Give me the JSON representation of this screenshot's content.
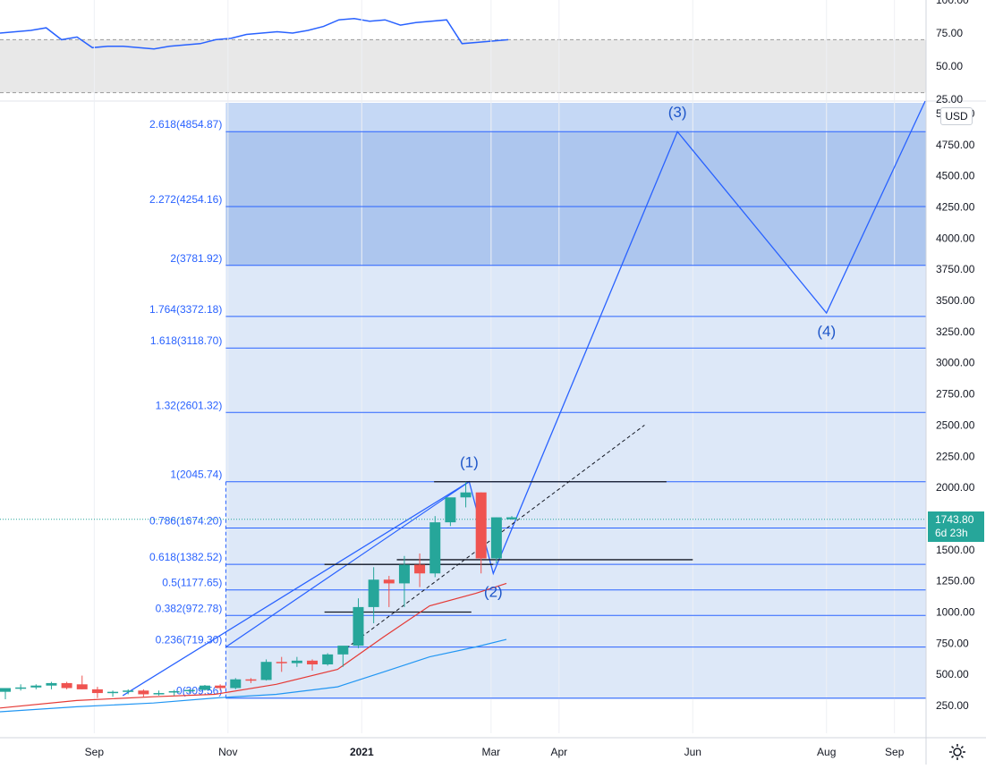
{
  "chart_data": [
    {
      "type": "line",
      "title": "",
      "y_ticks": [
        "100.00",
        "75.00",
        "50.00",
        "25.00"
      ],
      "ylim": [
        25,
        100
      ],
      "band": [
        30,
        70
      ],
      "values": [
        75,
        76,
        77,
        79,
        70,
        72,
        64,
        65,
        65,
        64,
        63,
        65,
        66,
        67,
        70,
        71,
        74,
        75,
        76,
        75,
        77,
        80,
        85,
        86,
        84,
        85,
        81,
        83,
        84,
        85,
        67,
        68,
        69,
        70
      ]
    },
    {
      "type": "candlestick",
      "title": "",
      "currency_button": "USD",
      "y_ticks": [
        "5000.00",
        "4750.00",
        "4500.00",
        "4250.00",
        "4000.00",
        "3750.00",
        "3500.00",
        "3250.00",
        "3000.00",
        "2750.00",
        "2500.00",
        "2250.00",
        "2000.00",
        "1750.00",
        "1500.00",
        "1250.00",
        "1000.00",
        "750.00",
        "500.00",
        "250.00"
      ],
      "x_ticks": [
        {
          "label": "Sep",
          "date": "2020-09-01",
          "bold": false
        },
        {
          "label": "Nov",
          "date": "2020-11-01",
          "bold": false
        },
        {
          "label": "2021",
          "date": "2021-01-01",
          "bold": true
        },
        {
          "label": "Mar",
          "date": "2021-03-01",
          "bold": false
        },
        {
          "label": "Apr",
          "date": "2021-04-01",
          "bold": false
        },
        {
          "label": "Jun",
          "date": "2021-06-01",
          "bold": false
        },
        {
          "label": "Aug",
          "date": "2021-08-01",
          "bold": false
        },
        {
          "label": "Sep",
          "date": "2021-09-01",
          "bold": false
        }
      ],
      "xlim": [
        "2020-07-20",
        "2021-09-15"
      ],
      "ylim": [
        100,
        5100
      ],
      "current_price": {
        "value": "1743.80",
        "countdown": "6d 23h"
      },
      "fib_levels": [
        {
          "ratio": "0",
          "price": "309.56"
        },
        {
          "ratio": "0.236",
          "price": "719.30"
        },
        {
          "ratio": "0.382",
          "price": "972.78"
        },
        {
          "ratio": "0.5",
          "price": "1177.65"
        },
        {
          "ratio": "0.618",
          "price": "1382.52"
        },
        {
          "ratio": "0.786",
          "price": "1674.20"
        },
        {
          "ratio": "1",
          "price": "2045.74"
        },
        {
          "ratio": "1.32",
          "price": "2601.32"
        },
        {
          "ratio": "1.618",
          "price": "3118.70"
        },
        {
          "ratio": "1.764",
          "price": "3372.18"
        },
        {
          "ratio": "2",
          "price": "3781.92"
        },
        {
          "ratio": "2.272",
          "price": "4254.16"
        },
        {
          "ratio": "2.618",
          "price": "4854.87"
        }
      ],
      "target_zone": [
        3781.92,
        4854.87
      ],
      "fib_start_date": "2020-10-31",
      "candles": [
        {
          "d": "2020-07-20",
          "o": 360,
          "h": 390,
          "l": 300,
          "c": 390
        },
        {
          "d": "2020-07-27",
          "o": 390,
          "h": 420,
          "l": 370,
          "c": 395
        },
        {
          "d": "2020-08-03",
          "o": 395,
          "h": 420,
          "l": 380,
          "c": 410
        },
        {
          "d": "2020-08-10",
          "o": 410,
          "h": 440,
          "l": 380,
          "c": 430
        },
        {
          "d": "2020-08-17",
          "o": 430,
          "h": 440,
          "l": 380,
          "c": 390
        },
        {
          "d": "2020-08-24",
          "o": 420,
          "h": 490,
          "l": 380,
          "c": 380
        },
        {
          "d": "2020-08-31",
          "o": 380,
          "h": 400,
          "l": 310,
          "c": 350
        },
        {
          "d": "2020-09-07",
          "o": 350,
          "h": 370,
          "l": 320,
          "c": 360
        },
        {
          "d": "2020-09-14",
          "o": 360,
          "h": 380,
          "l": 340,
          "c": 370
        },
        {
          "d": "2020-09-21",
          "o": 370,
          "h": 380,
          "l": 320,
          "c": 340
        },
        {
          "d": "2020-09-28",
          "o": 340,
          "h": 370,
          "l": 330,
          "c": 350
        },
        {
          "d": "2020-10-05",
          "o": 355,
          "h": 375,
          "l": 330,
          "c": 365
        },
        {
          "d": "2020-10-12",
          "o": 365,
          "h": 380,
          "l": 350,
          "c": 375
        },
        {
          "d": "2020-10-19",
          "o": 375,
          "h": 415,
          "l": 370,
          "c": 410
        },
        {
          "d": "2020-10-26",
          "o": 410,
          "h": 420,
          "l": 370,
          "c": 390
        },
        {
          "d": "2020-11-02",
          "o": 390,
          "h": 470,
          "l": 380,
          "c": 460
        },
        {
          "d": "2020-11-09",
          "o": 460,
          "h": 470,
          "l": 430,
          "c": 455
        },
        {
          "d": "2020-11-16",
          "o": 455,
          "h": 620,
          "l": 450,
          "c": 600
        },
        {
          "d": "2020-11-23",
          "o": 600,
          "h": 640,
          "l": 520,
          "c": 590
        },
        {
          "d": "2020-11-30",
          "o": 590,
          "h": 640,
          "l": 560,
          "c": 610
        },
        {
          "d": "2020-12-07",
          "o": 610,
          "h": 620,
          "l": 530,
          "c": 580
        },
        {
          "d": "2020-12-14",
          "o": 580,
          "h": 670,
          "l": 570,
          "c": 660
        },
        {
          "d": "2020-12-21",
          "o": 660,
          "h": 700,
          "l": 560,
          "c": 730
        },
        {
          "d": "2020-12-28",
          "o": 730,
          "h": 1110,
          "l": 710,
          "c": 1040
        },
        {
          "d": "2021-01-04",
          "o": 1040,
          "h": 1360,
          "l": 910,
          "c": 1260
        },
        {
          "d": "2021-01-11",
          "o": 1260,
          "h": 1290,
          "l": 1040,
          "c": 1230
        },
        {
          "d": "2021-01-18",
          "o": 1230,
          "h": 1450,
          "l": 1040,
          "c": 1380
        },
        {
          "d": "2021-01-25",
          "o": 1380,
          "h": 1470,
          "l": 1200,
          "c": 1310
        },
        {
          "d": "2021-02-01",
          "o": 1310,
          "h": 1770,
          "l": 1280,
          "c": 1720
        },
        {
          "d": "2021-02-08",
          "o": 1720,
          "h": 1880,
          "l": 1690,
          "c": 1920
        },
        {
          "d": "2021-02-15",
          "o": 1920,
          "h": 2045,
          "l": 1840,
          "c": 1960
        },
        {
          "d": "2021-02-22",
          "o": 1960,
          "h": 1960,
          "l": 1310,
          "c": 1430
        },
        {
          "d": "2021-03-01",
          "o": 1430,
          "h": 1760,
          "l": 1390,
          "c": 1760
        },
        {
          "d": "2021-03-08",
          "o": 1744,
          "h": 1770,
          "l": 1740,
          "c": 1760
        }
      ],
      "ema_short": [
        [
          "2020-07-20",
          230
        ],
        [
          "2020-08-24",
          290
        ],
        [
          "2020-09-28",
          320
        ],
        [
          "2020-10-26",
          340
        ],
        [
          "2020-11-23",
          420
        ],
        [
          "2020-12-21",
          540
        ],
        [
          "2021-01-11",
          800
        ],
        [
          "2021-02-01",
          1050
        ],
        [
          "2021-02-22",
          1150
        ],
        [
          "2021-03-08",
          1230
        ]
      ],
      "ema_long": [
        [
          "2020-07-20",
          200
        ],
        [
          "2020-08-24",
          240
        ],
        [
          "2020-09-28",
          270
        ],
        [
          "2020-10-26",
          310
        ],
        [
          "2020-11-23",
          340
        ],
        [
          "2020-12-21",
          400
        ],
        [
          "2021-01-11",
          520
        ],
        [
          "2021-02-01",
          640
        ],
        [
          "2021-02-22",
          720
        ],
        [
          "2021-03-08",
          780
        ]
      ],
      "wave_labels": [
        {
          "label": "(1)",
          "date": "2021-02-19",
          "value": 2045.74
        },
        {
          "label": "(2)",
          "date": "2021-03-02",
          "value": 1310
        },
        {
          "label": "(3)",
          "date": "2021-05-25",
          "value": 4854.87
        },
        {
          "label": "(4)",
          "date": "2021-08-01",
          "value": 3400
        }
      ],
      "wave_path": [
        [
          "2020-09-14",
          330
        ],
        [
          "2021-02-19",
          2045.74
        ],
        [
          "2021-03-02",
          1310
        ],
        [
          "2021-05-25",
          4854.87
        ],
        [
          "2021-08-01",
          3400
        ],
        [
          "2021-09-15",
          5100
        ]
      ],
      "channel_top": [
        [
          "2020-10-31",
          719.3
        ],
        [
          "2021-02-19",
          2045.74
        ]
      ],
      "trend_line": [
        [
          "2020-12-25",
          710
        ],
        [
          "2021-05-10",
          2500
        ]
      ],
      "horizontal_marks": [
        {
          "from": "2021-02-03",
          "to": "2021-05-20",
          "value": 2045.74
        },
        {
          "from": "2021-01-17",
          "to": "2021-06-01",
          "value": 1420
        },
        {
          "from": "2020-12-15",
          "to": "2021-03-02",
          "value": 1382.52
        },
        {
          "from": "2020-12-15",
          "to": "2021-02-20",
          "value": 1000
        }
      ]
    }
  ]
}
